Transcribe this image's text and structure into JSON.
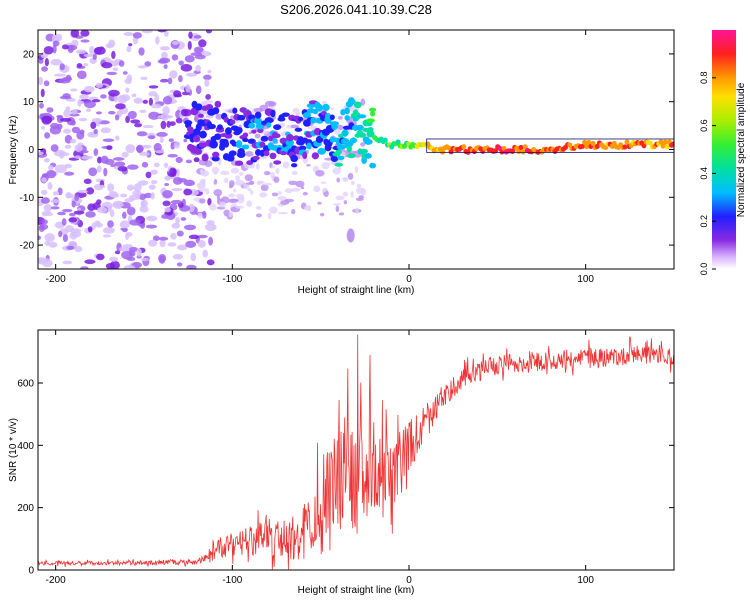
{
  "figure_title": "S206.2026.041.10.39.C28",
  "chart_data": [
    {
      "type": "heatmap",
      "title": "S206.2026.041.10.39.C28",
      "xlabel": "Height of straight line (km)",
      "ylabel": "Frequency (Hz)",
      "xlim": [
        -210,
        150
      ],
      "ylim": [
        -25,
        25
      ],
      "xticks": [
        -200,
        -100,
        0,
        100
      ],
      "yticks": [
        -20,
        -10,
        0,
        10,
        20
      ],
      "xtick_labels": [
        "-200",
        "-100",
        "0",
        "100"
      ],
      "ytick_labels": [
        "-20",
        "-10",
        "0",
        "10",
        "20"
      ],
      "ridge": {
        "x": [
          -120,
          -110,
          -100,
          -90,
          -80,
          -70,
          -60,
          -50,
          -40,
          -35,
          -30,
          -25,
          -20,
          -15,
          -10,
          -5,
          0,
          5,
          10,
          15,
          20,
          40,
          60,
          80,
          100,
          120,
          150
        ],
        "freq": [
          4,
          4,
          3,
          3,
          1,
          3,
          3,
          4,
          2,
          4,
          6,
          3,
          2,
          2,
          1,
          1,
          1,
          1,
          1,
          0,
          0,
          0,
          0,
          0,
          1,
          1,
          1
        ],
        "amplitude": [
          0.22,
          0.22,
          0.22,
          0.24,
          0.25,
          0.26,
          0.27,
          0.3,
          0.35,
          0.38,
          0.4,
          0.45,
          0.5,
          0.52,
          0.55,
          0.55,
          0.6,
          0.7,
          0.75,
          0.8,
          0.9,
          0.92,
          0.92,
          0.9,
          0.88,
          0.88,
          0.85
        ]
      },
      "noise_region": {
        "x_range": [
          -210,
          -120
        ],
        "freq_range": [
          -25,
          25
        ],
        "amplitude": 0.08
      },
      "colorbar": {
        "label": "Normalized spectral amplitude",
        "range": [
          0,
          1
        ],
        "ticks": [
          0.0,
          0.2,
          0.4,
          0.6,
          0.8
        ],
        "tick_labels": [
          "0.0",
          "0.2",
          "0.4",
          "0.6",
          "0.8"
        ]
      }
    },
    {
      "type": "line",
      "xlabel": "Height of straight line (km)",
      "ylabel": "SNR (10 * v/v)",
      "xlim": [
        -210,
        150
      ],
      "ylim": [
        0,
        770
      ],
      "xticks": [
        -200,
        -100,
        0,
        100
      ],
      "yticks": [
        0,
        200,
        400,
        600
      ],
      "xtick_labels": [
        "-200",
        "-100",
        "0",
        "100"
      ],
      "ytick_labels": [
        "0",
        "200",
        "400",
        "600"
      ],
      "series": [
        {
          "name": "SNR",
          "color": "#ee3333",
          "x": [
            -210,
            -200,
            -180,
            -160,
            -140,
            -120,
            -115,
            -110,
            -100,
            -90,
            -80,
            -70,
            -60,
            -55,
            -50,
            -45,
            -40,
            -35,
            -30,
            -27,
            -25,
            -20,
            -15,
            -10,
            -5,
            0,
            5,
            10,
            15,
            20,
            25,
            30,
            35,
            40,
            50,
            60,
            70,
            80,
            90,
            100,
            110,
            120,
            130,
            140,
            150
          ],
          "y": [
            22,
            22,
            22,
            22,
            25,
            25,
            40,
            70,
            80,
            95,
            100,
            100,
            120,
            150,
            180,
            220,
            280,
            380,
            250,
            320,
            280,
            360,
            260,
            300,
            340,
            390,
            440,
            480,
            520,
            560,
            590,
            610,
            625,
            640,
            655,
            665,
            668,
            672,
            676,
            680,
            682,
            684,
            688,
            690,
            690
          ],
          "spread": [
            8,
            8,
            8,
            8,
            10,
            10,
            20,
            40,
            50,
            60,
            70,
            80,
            110,
            140,
            170,
            200,
            230,
            250,
            220,
            200,
            200,
            180,
            160,
            150,
            130,
            110,
            90,
            70,
            60,
            50,
            45,
            40,
            40,
            40,
            40,
            40,
            40,
            40,
            40,
            40,
            40,
            40,
            40,
            40,
            40
          ],
          "peaks": [
            {
              "x": -29,
              "y": 755
            },
            {
              "x": -22,
              "y": 690
            },
            {
              "x": -15,
              "y": 545
            },
            {
              "x": -35,
              "y": 460
            }
          ]
        }
      ]
    }
  ],
  "colors": {
    "axis": "#000000",
    "line": "#ee3333",
    "noise": "#8a2be2",
    "background": "#ffffff"
  }
}
